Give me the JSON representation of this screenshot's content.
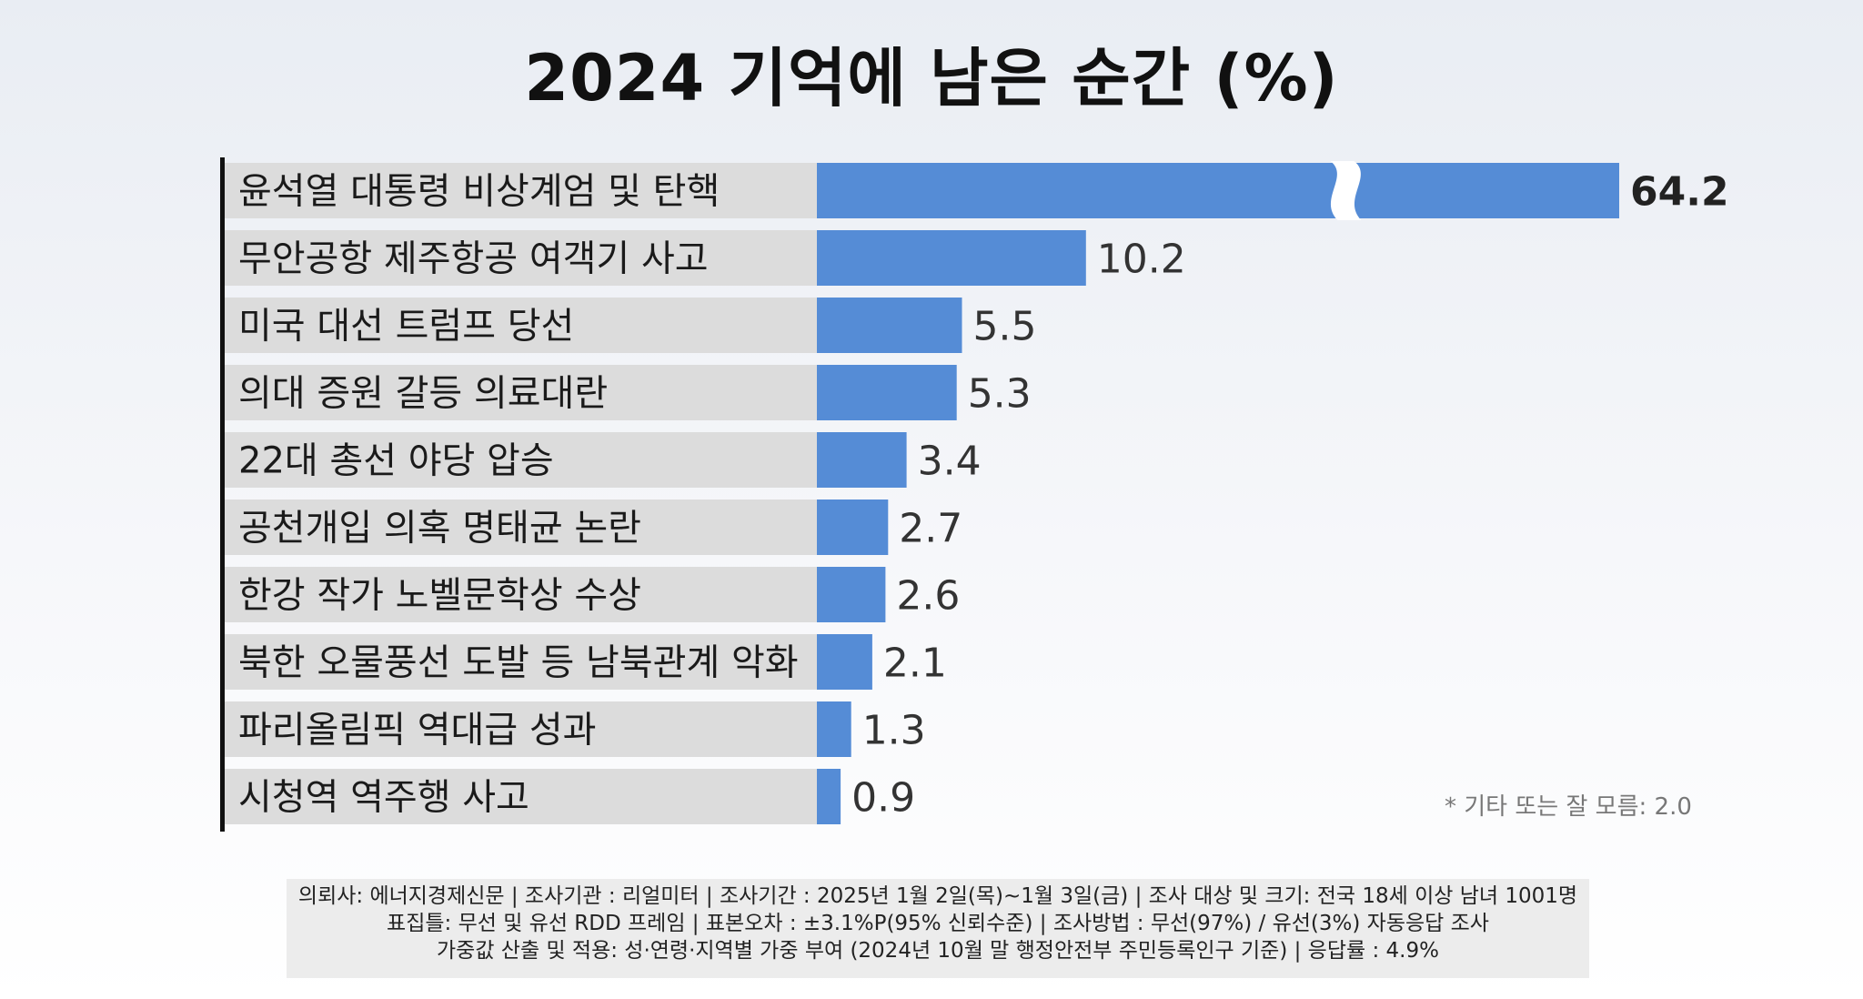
{
  "title": "2024 기억에 남은 순간 (%)",
  "note": "* 기타 또는 잘 모름: 2.0",
  "footer": {
    "line1": "의뢰사: 에너지경제신문 | 조사기관 : 리얼미터  |  조사기간 : 2025년 1월 2일(목)~1월 3일(금) | 조사 대상 및 크기: 전국 18세 이상 남녀 1001명",
    "line2": "표집틀: 무선 및 유선 RDD 프레임 | 표본오차 : ±3.1%P(95% 신뢰수준) | 조사방법 : 무선(97%) / 유선(3%) 자동응답 조사",
    "line3": "가중값 산출 및 적용: 성·연령·지역별 가중 부여 (2024년 10월 말 행정안전부 주민등록인구 기준) | 응답률 : 4.9%"
  },
  "colors": {
    "bar": "#558cd6",
    "label_bg": "#dcdcdc",
    "axis": "#111111"
  },
  "chart_data": {
    "type": "bar",
    "orientation": "horizontal",
    "title": "2024 기억에 남은 순간 (%)",
    "categories": [
      "윤석열 대통령 비상계엄 및 탄핵",
      "무안공항 제주항공 여객기 사고",
      "미국 대선 트럼프 당선",
      "의대 증원 갈등 의료대란",
      "22대 총선 야당 압승",
      "공천개입 의혹 명태균 논란",
      "한강 작가 노벨문학상 수상",
      "북한 오물풍선 도발 등 남북관계 악화",
      "파리올림픽 역대급 성과",
      "시청역 역주행 사고"
    ],
    "values": [
      64.2,
      10.2,
      5.5,
      5.3,
      3.4,
      2.7,
      2.6,
      2.1,
      1.3,
      0.9
    ],
    "value_labels": [
      "64.2",
      "10.2",
      "5.5",
      "5.3",
      "3.4",
      "2.7",
      "2.6",
      "2.1",
      "1.3",
      "0.9"
    ],
    "axis_break_on_first_bar": true,
    "grid": false,
    "legend": "none"
  }
}
